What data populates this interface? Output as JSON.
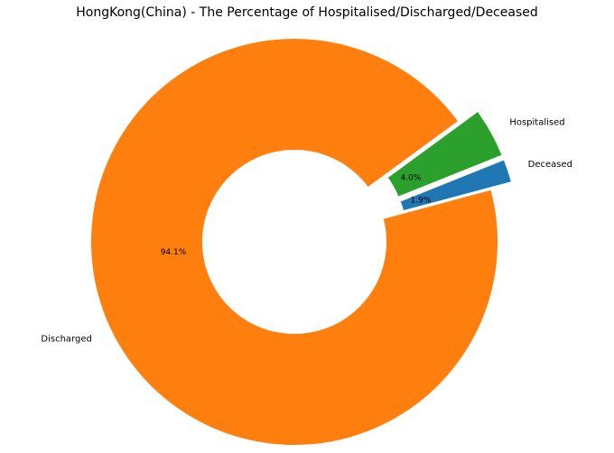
{
  "chart_data": {
    "type": "pie",
    "title": "HongKong(China) - The Percentage of Hospitalised/Discharged/Deceased",
    "slices": [
      {
        "label": "Deceased",
        "value": 1.9,
        "pct_label": "1.9%",
        "color": "#1f77b4",
        "exploded": true
      },
      {
        "label": "Hospitalised",
        "value": 4.0,
        "pct_label": "4.0%",
        "color": "#2ca02c",
        "exploded": true
      },
      {
        "label": "Discharged",
        "value": 94.1,
        "pct_label": "94.1%",
        "color": "#ff7f0e",
        "exploded": false
      }
    ],
    "donut": true,
    "legend": "none"
  }
}
